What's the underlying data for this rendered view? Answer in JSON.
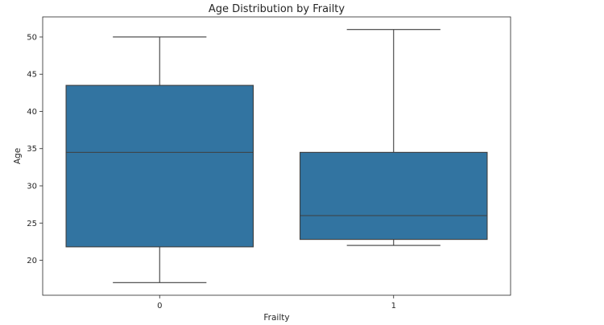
{
  "chart_data": {
    "type": "box",
    "title": "Age Distribution by Frailty",
    "xlabel": "Frailty",
    "ylabel": "Age",
    "categories": [
      "0",
      "1"
    ],
    "boxes": [
      {
        "category": "0",
        "whisker_low": 17,
        "q1": 21.8,
        "median": 34.5,
        "q3": 43.5,
        "whisker_high": 50
      },
      {
        "category": "1",
        "whisker_low": 22,
        "q1": 22.8,
        "median": 26,
        "q3": 34.5,
        "whisker_high": 51
      }
    ],
    "ylim": [
      15.3,
      52.7
    ],
    "yticks": [
      20,
      25,
      30,
      35,
      40,
      45,
      50
    ],
    "grid": false,
    "box_color": "#3274a1",
    "line_color": "#3f3f3f"
  }
}
